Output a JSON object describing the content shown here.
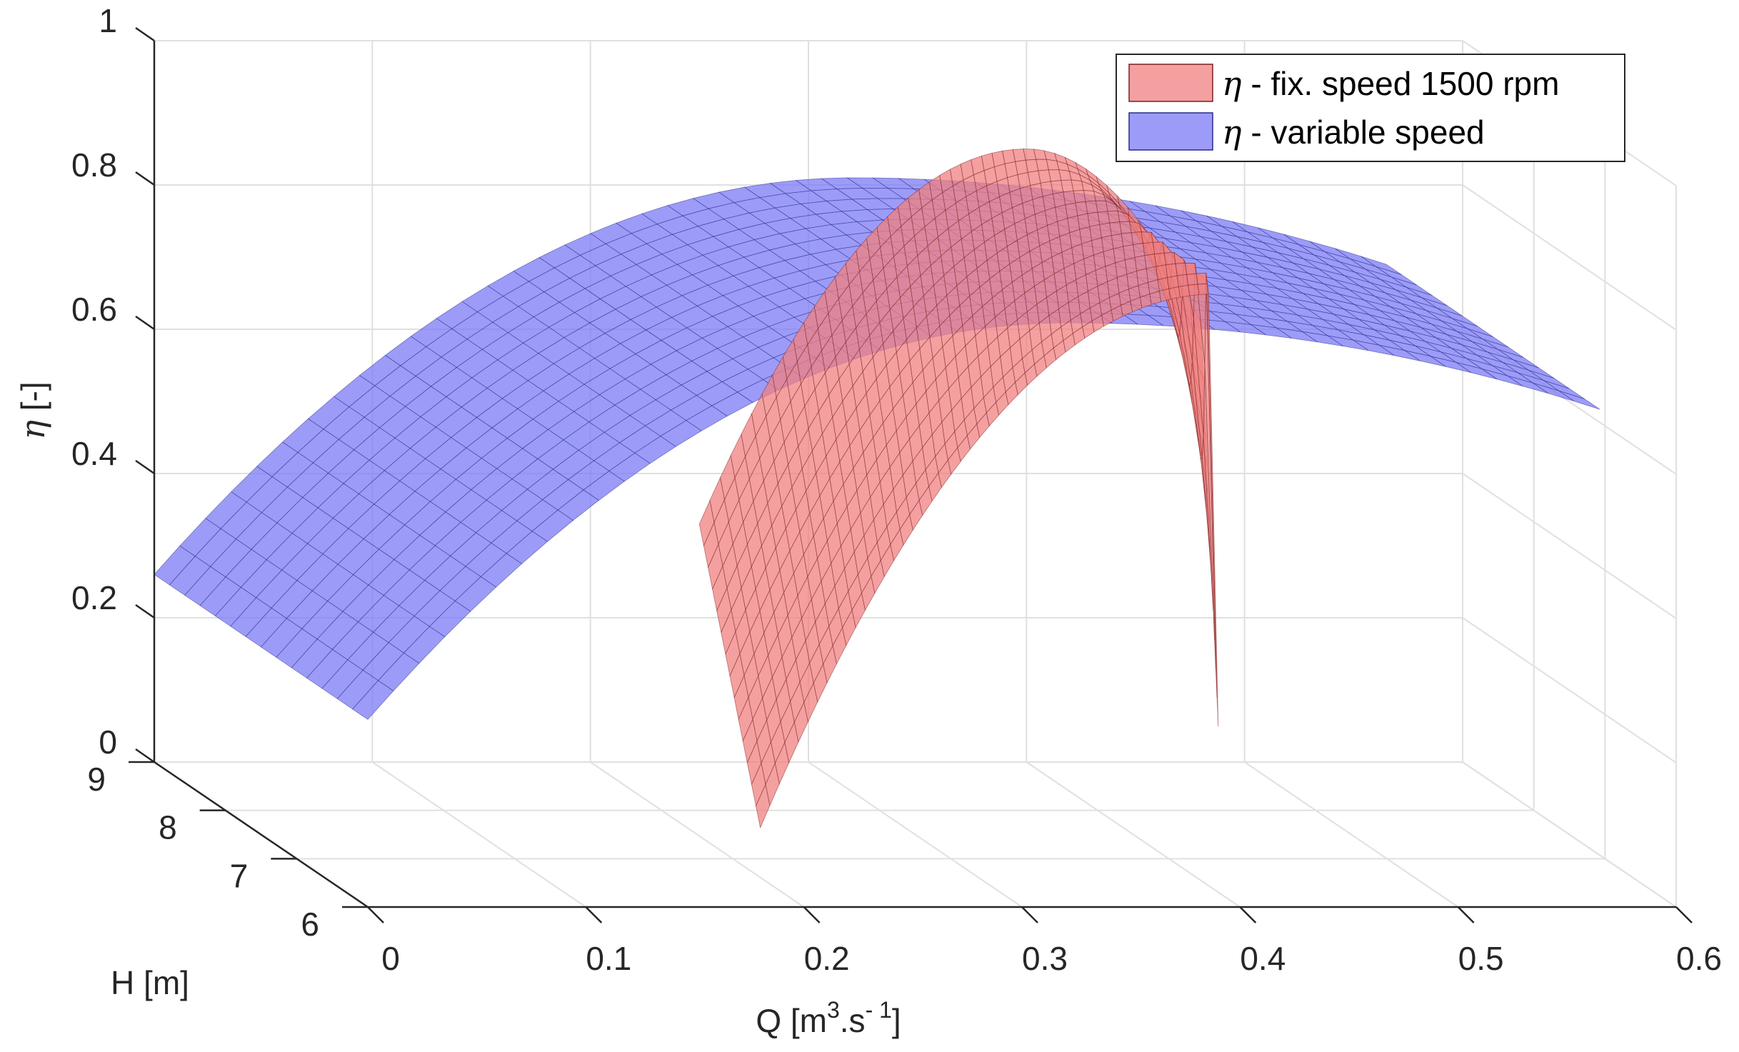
{
  "chart_data": {
    "type": "surface3d",
    "title": "",
    "xlabel": {
      "base": "Q [m",
      "sup1": "3",
      "mid": ".s",
      "sup2": "- 1",
      "end": "]"
    },
    "ylabel": "H [m]",
    "zlabel": {
      "symbol": "η",
      "rest": " [-]"
    },
    "xlim": [
      0,
      0.6
    ],
    "ylim": [
      6,
      9
    ],
    "zlim": [
      0,
      1
    ],
    "xticks": [
      0,
      0.1,
      0.2,
      0.3,
      0.4,
      0.5,
      0.6
    ],
    "xtick_labels": [
      "0",
      "0.1",
      "0.2",
      "0.3",
      "0.4",
      "0.5",
      "0.6"
    ],
    "yticks": [
      6,
      7,
      8,
      9
    ],
    "ytick_labels": [
      "6",
      "7",
      "8",
      "9"
    ],
    "zticks": [
      0,
      0.2,
      0.4,
      0.6,
      0.8,
      1
    ],
    "ztick_labels": [
      "0",
      "0.2",
      "0.4",
      "0.6",
      "0.8",
      "1"
    ],
    "grid": true,
    "legend_position": "top-right",
    "series": [
      {
        "name": "variable speed",
        "legend_symbol": "η",
        "legend_text": " - variable speed",
        "color": "#7b7bf5",
        "edge_color": "#2a2a8c",
        "opacity": 0.75,
        "grid_q": 48,
        "grid_h": 8,
        "corners": [
          {
            "q_start": 0.0,
            "h": 6.0,
            "eta": 0.26
          },
          {
            "q_start": 0.0,
            "h": 9.0,
            "eta": 0.26
          },
          {
            "q_end": 0.565,
            "h": 6.0,
            "eta": 0.69
          },
          {
            "q_end": 0.565,
            "h": 9.0,
            "eta": 0.69
          }
        ],
        "peak_eta": 0.81,
        "peak_q": 0.32
      },
      {
        "name": "fix. speed 1500 rpm",
        "legend_symbol": "η",
        "legend_text": " - fix. speed 1500 rpm",
        "color": "#f08080",
        "edge_color": "#7a2020",
        "opacity": 0.75,
        "grid_q": 8,
        "grid_h": 48,
        "corners": [
          {
            "q_start": 0.18,
            "h": 6.0,
            "eta": 0.11
          },
          {
            "q_start": 0.25,
            "h": 9.0,
            "eta": 0.33
          },
          {
            "q_end": 0.39,
            "h": 6.0,
            "eta": 0.25
          },
          {
            "q_end": 0.48,
            "h": 9.0,
            "eta": 0.61
          }
        ],
        "peak_eta": 0.85,
        "peak_q": 0.4
      }
    ]
  }
}
